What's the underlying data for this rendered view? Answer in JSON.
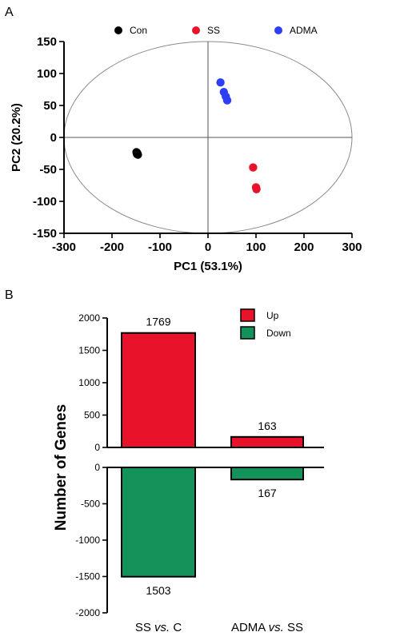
{
  "chart_data": [
    {
      "type": "scatter",
      "panel_label": "A",
      "xlabel": "PC1 (53.1%)",
      "ylabel": "PC2 (20.2%)",
      "xlim": [
        -300,
        300
      ],
      "ylim": [
        -150,
        150
      ],
      "xticks": [
        -300,
        -200,
        -100,
        0,
        100,
        200,
        300
      ],
      "yticks": [
        -150,
        -100,
        -50,
        0,
        50,
        100,
        150
      ],
      "legend_position": "top",
      "series": [
        {
          "name": "Con",
          "color": "#000000",
          "points": [
            [
              -148,
              -24
            ],
            [
              -147,
              -26
            ],
            [
              -149,
              -23
            ],
            [
              -146,
              -27
            ],
            [
              -147,
              -25
            ],
            [
              -148,
              -26
            ]
          ]
        },
        {
          "name": "SS",
          "color": "#e8132b",
          "points": [
            [
              94,
              -47
            ],
            [
              100,
              -78
            ],
            [
              101,
              -81
            ]
          ]
        },
        {
          "name": "ADMA",
          "color": "#2e3ef5",
          "points": [
            [
              26,
              86
            ],
            [
              33,
              71
            ],
            [
              37,
              64
            ],
            [
              40,
              58
            ]
          ]
        }
      ],
      "confidence_ellipse": true
    },
    {
      "type": "bar",
      "panel_label": "B",
      "ylabel": "Number of Genes",
      "categories": [
        "SS vs. C",
        "ADMA vs. SS"
      ],
      "category_parts": [
        {
          "a": "SS ",
          "b": "vs.",
          "c": " C"
        },
        {
          "a": "ADMA ",
          "b": "vs.",
          "c": " SS"
        }
      ],
      "series": [
        {
          "name": "Up",
          "color": "#e8132b",
          "values": [
            1769,
            163
          ]
        },
        {
          "name": "Down",
          "color": "#13925a",
          "values": [
            -1503,
            -167
          ]
        }
      ],
      "data_labels": [
        "1769",
        "163",
        "1503",
        "167"
      ],
      "upper_yticks": [
        0,
        500,
        1000,
        1500,
        2000
      ],
      "lower_yticks": [
        0,
        -500,
        -1000,
        -1500,
        -2000
      ],
      "ylim": [
        -2000,
        2000
      ],
      "legend_position": "top-right"
    }
  ]
}
